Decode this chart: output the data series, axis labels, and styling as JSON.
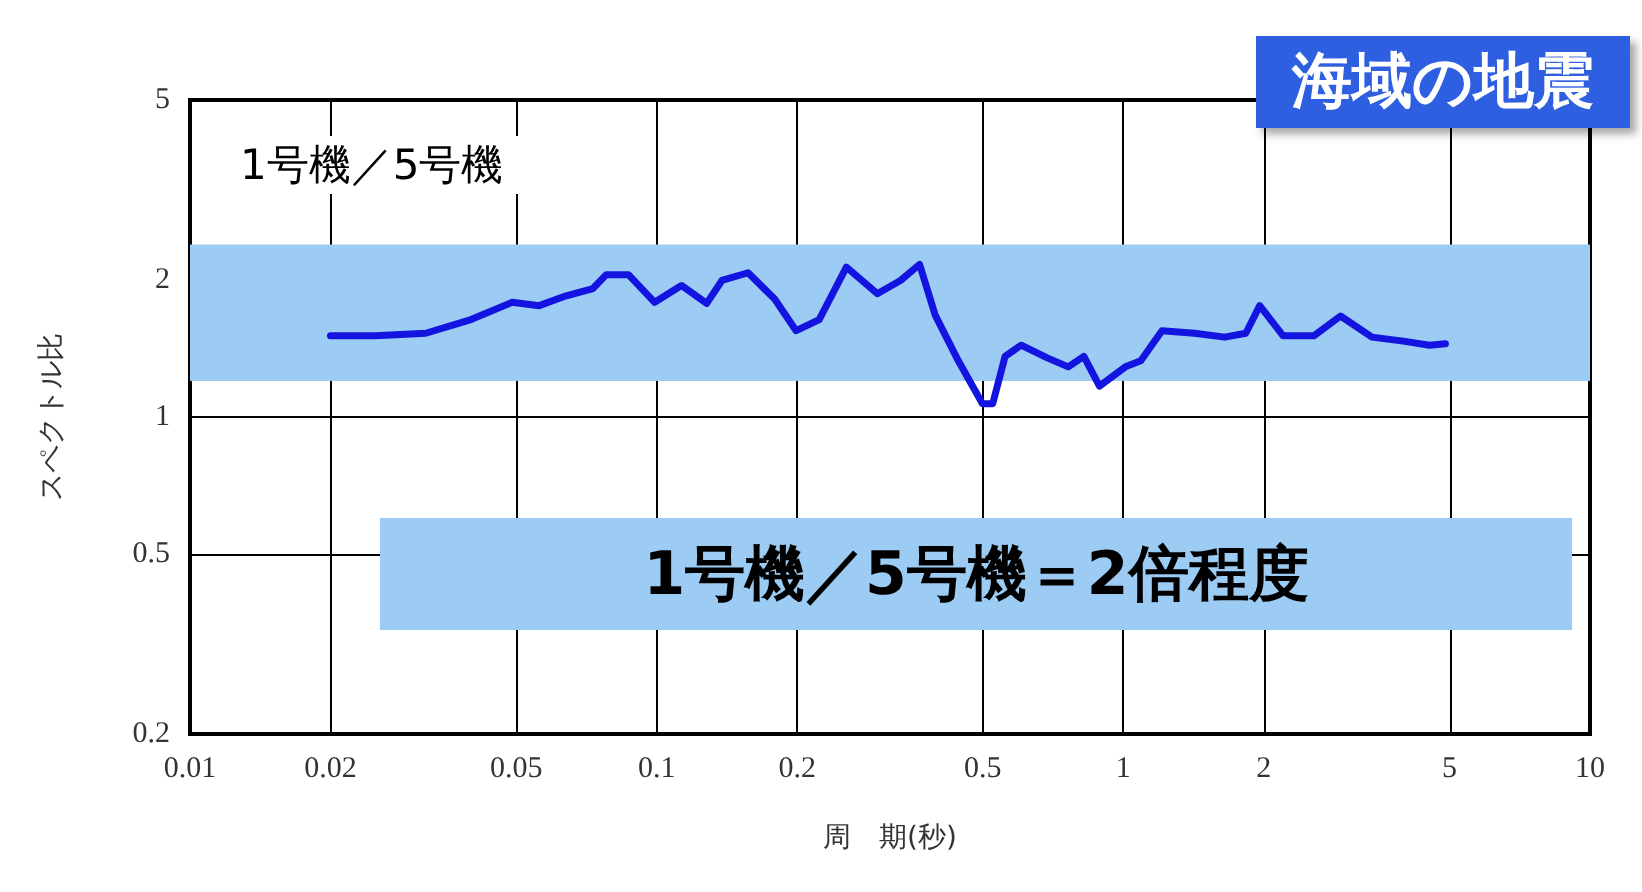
{
  "chart_data": {
    "type": "line",
    "title": "海域の地震",
    "xlabel": "周　期(秒)",
    "ylabel": "スペクトル比",
    "annotations": [
      "1号機／5号機",
      "1号機／5号機＝2倍程度"
    ],
    "log": "xy",
    "xlim": [
      0.01,
      10
    ],
    "ylim": [
      0.2,
      5
    ],
    "xticks": [
      0.01,
      0.02,
      0.05,
      0.1,
      0.2,
      0.5,
      1,
      2,
      5,
      10
    ],
    "yticks": [
      0.2,
      0.5,
      1,
      2,
      5
    ],
    "grid": true,
    "marker": "none",
    "line_style": "solid",
    "bands": [
      {
        "axis": "y",
        "from": 1.2,
        "to": 2.4,
        "color": "#9ccbf3"
      }
    ],
    "series": [
      {
        "color": "#1414e0",
        "x": [
          0.02,
          0.025,
          0.032,
          0.04,
          0.049,
          0.056,
          0.064,
          0.073,
          0.078,
          0.087,
          0.099,
          0.113,
          0.128,
          0.138,
          0.157,
          0.179,
          0.199,
          0.223,
          0.255,
          0.297,
          0.333,
          0.366,
          0.395,
          0.443,
          0.499,
          0.525,
          0.558,
          0.604,
          0.687,
          0.762,
          0.823,
          0.889,
          1.01,
          1.09,
          1.21,
          1.42,
          1.65,
          1.83,
          1.96,
          2.2,
          2.56,
          2.92,
          3.41,
          3.98,
          4.53,
          4.9
        ],
        "values": [
          1.51,
          1.51,
          1.53,
          1.64,
          1.79,
          1.76,
          1.85,
          1.92,
          2.06,
          2.06,
          1.79,
          1.95,
          1.78,
          2.0,
          2.08,
          1.82,
          1.55,
          1.64,
          2.14,
          1.87,
          2.0,
          2.17,
          1.68,
          1.33,
          1.07,
          1.07,
          1.36,
          1.44,
          1.35,
          1.29,
          1.36,
          1.17,
          1.29,
          1.33,
          1.55,
          1.53,
          1.5,
          1.53,
          1.76,
          1.51,
          1.51,
          1.67,
          1.5,
          1.47,
          1.44,
          1.45
        ]
      }
    ]
  }
}
